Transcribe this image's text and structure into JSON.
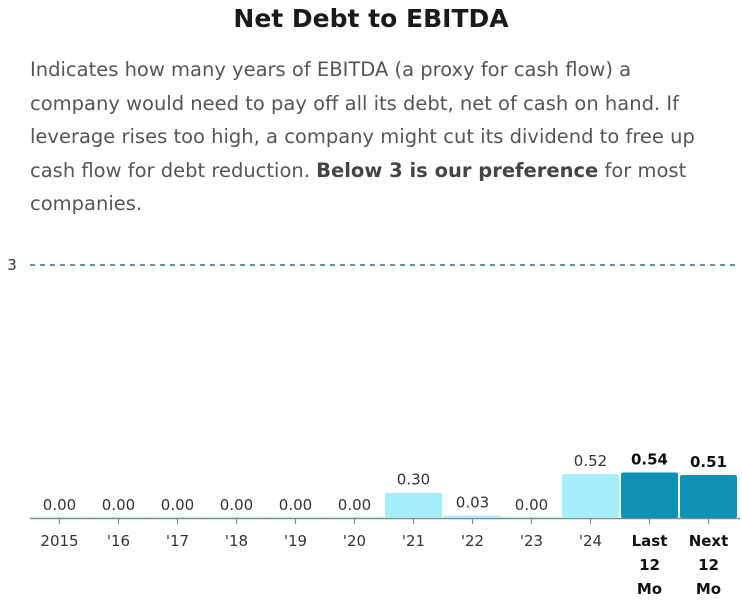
{
  "title": "Net Debt to EBITDA",
  "description": {
    "text_before": "Indicates how many years of EBITDA (a proxy for cash flow) a company would need to pay off all its debt, net of cash on hand. If leverage rises too high, a company might cut its dividend to free up cash flow for debt reduction. ",
    "emphasis": "Below 3 is our preference",
    "text_after": " for most companies."
  },
  "colors": {
    "light_bar": "#a6eefa",
    "dark_bar": "#0e93b7",
    "reference_line": "#2a6f8f",
    "axis": "#888888"
  },
  "chart_data": {
    "type": "bar",
    "title": "Net Debt to EBITDA",
    "xlabel": "",
    "ylabel": "",
    "ylim": [
      0,
      3
    ],
    "categories": [
      "2015",
      "'16",
      "'17",
      "'18",
      "'19",
      "'20",
      "'21",
      "'22",
      "'23",
      "'24",
      "Last 12 Mo",
      "Next 12 Mo"
    ],
    "category_lines": [
      [
        "2015"
      ],
      [
        "'16"
      ],
      [
        "'17"
      ],
      [
        "'18"
      ],
      [
        "'19"
      ],
      [
        "'20"
      ],
      [
        "'21"
      ],
      [
        "'22"
      ],
      [
        "'23"
      ],
      [
        "'24"
      ],
      [
        "Last",
        "12",
        "Mo"
      ],
      [
        "Next",
        "12",
        "Mo"
      ]
    ],
    "values": [
      0.0,
      0.0,
      0.0,
      0.0,
      0.0,
      0.0,
      0.3,
      0.03,
      0.0,
      0.52,
      0.54,
      0.51
    ],
    "value_labels": [
      "0.00",
      "0.00",
      "0.00",
      "0.00",
      "0.00",
      "0.00",
      "0.30",
      "0.03",
      "0.00",
      "0.52",
      "0.54",
      "0.51"
    ],
    "highlighted": [
      false,
      false,
      false,
      false,
      false,
      false,
      false,
      false,
      false,
      false,
      true,
      true
    ],
    "reference_line": {
      "value": 3,
      "label": "3",
      "style": "dashed"
    }
  }
}
